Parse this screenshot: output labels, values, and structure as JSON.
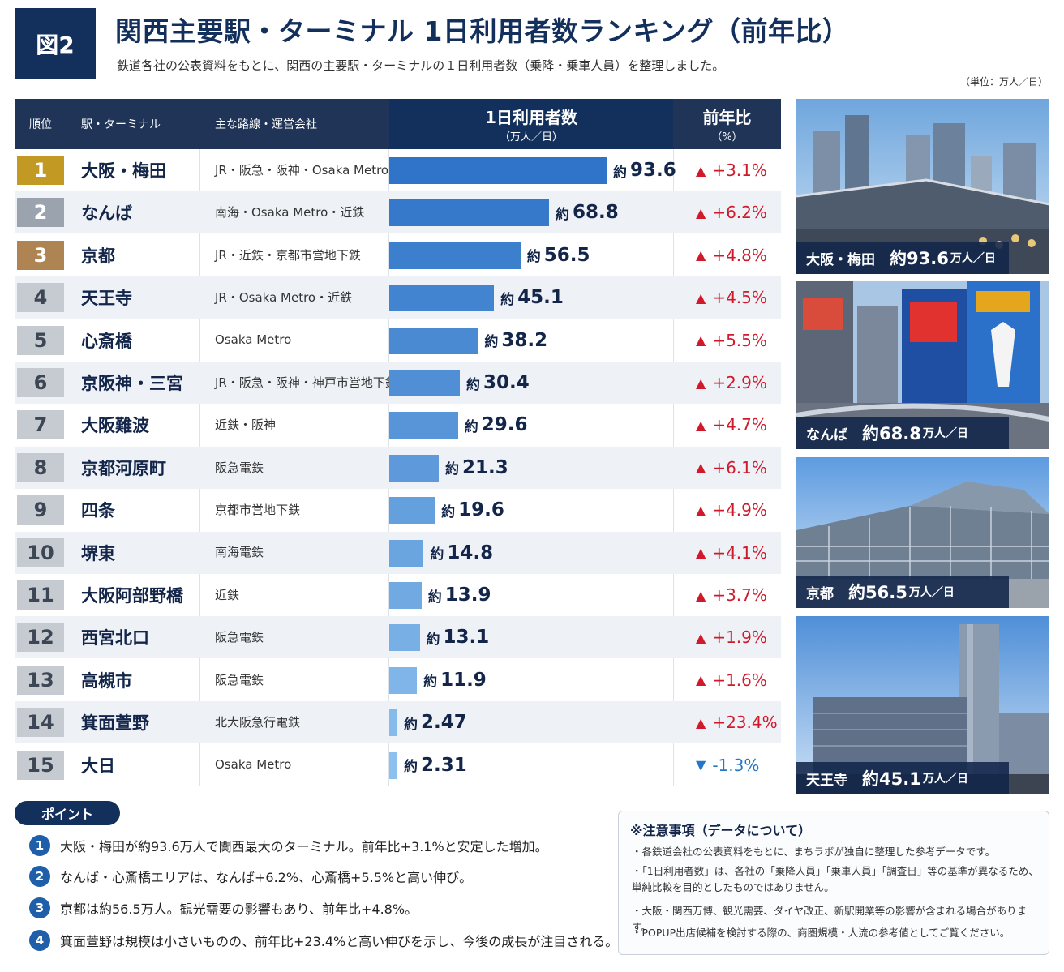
{
  "header": {
    "figure_label": "図2",
    "title": "関西主要駅・ターミナル 1日利用者数ランキング（前年比）",
    "subtitle": "鉄道各社の公表資料をもとに、関西の主要駅・ターミナルの１日利用者数（乗降・乗車人員）を整理しました。",
    "unit": "（単位：万人／日）"
  },
  "table": {
    "col_rank": "順位",
    "col_station": "駅・ターミナル",
    "col_lines": "主な路線・運営会社",
    "col_metric": "1日利用者数",
    "col_metric_unit": "（万人／日）",
    "col_yoy": "前年比",
    "col_yoy_unit": "（%）",
    "value_prefix": "約"
  },
  "colors": {
    "gold": "#c29a23",
    "silver": "#9ba4ae",
    "bronze": "#ad8452",
    "rank_gray": "#c6cbd1",
    "bar_dark": "#2f74c8",
    "bar_light": "#8cc0ee",
    "up": "#d0192b",
    "down": "#2777c9"
  },
  "chart_data": {
    "type": "bar",
    "orientation": "horizontal",
    "categories": [
      "大阪・梅田",
      "なんば",
      "京都",
      "天王寺",
      "心斎橋",
      "京阪神・三宮",
      "大阪難波",
      "京都河原町",
      "四条",
      "堺東",
      "大阪阿部野橋",
      "西宮北口",
      "高槻市",
      "箕面萱野",
      "大日"
    ],
    "series": [
      {
        "values": [
          93.6,
          68.8,
          56.5,
          45.1,
          38.2,
          30.4,
          29.6,
          21.3,
          19.6,
          14.8,
          13.9,
          13.1,
          11.9,
          2.47,
          2.31
        ]
      }
    ],
    "rows": [
      {
        "rank": "1",
        "station": "大阪・梅田",
        "lines": "JR・阪急・阪神・Osaka Metro",
        "value": 93.6,
        "value_text": "93.6",
        "yoy": "+3.1%",
        "dir": "up"
      },
      {
        "rank": "2",
        "station": "なんば",
        "lines": "南海・Osaka Metro・近鉄",
        "value": 68.8,
        "value_text": "68.8",
        "yoy": "+6.2%",
        "dir": "up"
      },
      {
        "rank": "3",
        "station": "京都",
        "lines": "JR・近鉄・京都市営地下鉄",
        "value": 56.5,
        "value_text": "56.5",
        "yoy": "+4.8%",
        "dir": "up"
      },
      {
        "rank": "4",
        "station": "天王寺",
        "lines": "JR・Osaka Metro・近鉄",
        "value": 45.1,
        "value_text": "45.1",
        "yoy": "+4.5%",
        "dir": "up"
      },
      {
        "rank": "5",
        "station": "心斎橋",
        "lines": "Osaka Metro",
        "value": 38.2,
        "value_text": "38.2",
        "yoy": "+5.5%",
        "dir": "up"
      },
      {
        "rank": "6",
        "station": "京阪神・三宮",
        "lines": "JR・阪急・阪神・神戸市営地下鉄",
        "value": 30.4,
        "value_text": "30.4",
        "yoy": "+2.9%",
        "dir": "up"
      },
      {
        "rank": "7",
        "station": "大阪難波",
        "lines": "近鉄・阪神",
        "value": 29.6,
        "value_text": "29.6",
        "yoy": "+4.7%",
        "dir": "up"
      },
      {
        "rank": "8",
        "station": "京都河原町",
        "lines": "阪急電鉄",
        "value": 21.3,
        "value_text": "21.3",
        "yoy": "+6.1%",
        "dir": "up"
      },
      {
        "rank": "9",
        "station": "四条",
        "lines": "京都市営地下鉄",
        "value": 19.6,
        "value_text": "19.6",
        "yoy": "+4.9%",
        "dir": "up"
      },
      {
        "rank": "10",
        "station": "堺東",
        "lines": "南海電鉄",
        "value": 14.8,
        "value_text": "14.8",
        "yoy": "+4.1%",
        "dir": "up"
      },
      {
        "rank": "11",
        "station": "大阪阿部野橋",
        "lines": "近鉄",
        "value": 13.9,
        "value_text": "13.9",
        "yoy": "+3.7%",
        "dir": "up"
      },
      {
        "rank": "12",
        "station": "西宮北口",
        "lines": "阪急電鉄",
        "value": 13.1,
        "value_text": "13.1",
        "yoy": "+1.9%",
        "dir": "up"
      },
      {
        "rank": "13",
        "station": "高槻市",
        "lines": "阪急電鉄",
        "value": 11.9,
        "value_text": "11.9",
        "yoy": "+1.6%",
        "dir": "up"
      },
      {
        "rank": "14",
        "station": "箕面萱野",
        "lines": "北大阪急行電鉄",
        "value": 2.47,
        "value_text": "2.47",
        "yoy": "+23.4%",
        "dir": "up"
      },
      {
        "rank": "15",
        "station": "大日",
        "lines": "Osaka Metro",
        "value": 2.31,
        "value_text": "2.31",
        "yoy": "-1.3%",
        "dir": "down"
      }
    ],
    "xlim": [
      0,
      100
    ],
    "grid": false,
    "legend": "none"
  },
  "photos": [
    {
      "name": "大阪・梅田",
      "value": "約93.6",
      "unit": "万人／日",
      "icon": "skyline-photo"
    },
    {
      "name": "なんば",
      "value": "約68.8",
      "unit": "万人／日",
      "icon": "billboard-photo"
    },
    {
      "name": "京都",
      "value": "約56.5",
      "unit": "万人／日",
      "icon": "station-photo"
    },
    {
      "name": "天王寺",
      "value": "約45.1",
      "unit": "万人／日",
      "icon": "tower-photo"
    }
  ],
  "points": {
    "badge": "ポイント",
    "items": [
      {
        "num": "1",
        "text": "大阪・梅田が約93.6万人で関西最大のターミナル。前年比+3.1%と安定した増加。"
      },
      {
        "num": "2",
        "text": "なんば・心斎橋エリアは、なんば+6.2%、心斎橋+5.5%と高い伸び。"
      },
      {
        "num": "3",
        "text": "京都は約56.5万人。観光需要の影響もあり、前年比+4.8%。"
      },
      {
        "num": "4",
        "text": "箕面萱野は規模は小さいものの、前年比+23.4%と高い伸びを示し、今後の成長が注目される。"
      }
    ]
  },
  "notes": {
    "title": "※注意事項（データについて）",
    "items": [
      "・各鉄道会社の公表資料をもとに、まちラボが独自に整理した参考データです。",
      "・「1日利用者数」は、各社の「乗降人員」「乗車人員」「調査日」等の基準が異なるため、単純比較を目的としたものではありません。",
      "・大阪・関西万博、観光需要、ダイヤ改正、新駅開業等の影響が含まれる場合があります。",
      "・POPUP出店候補を検討する際の、商圏規模・人流の参考値としてご覧ください。"
    ]
  }
}
